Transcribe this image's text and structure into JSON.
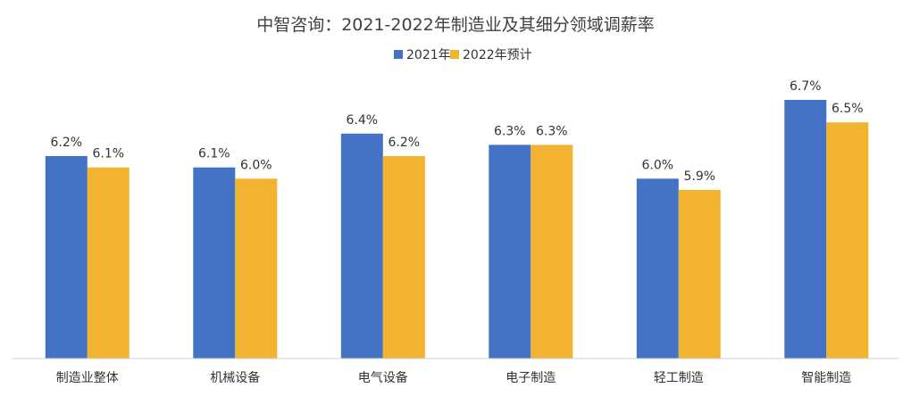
{
  "chart_data": {
    "type": "bar",
    "title": "中智咨询：2021-2022年制造业及其细分领域调薪率",
    "categories": [
      "制造业整体",
      "机械设备",
      "电气设备",
      "电子制造",
      "轻工制造",
      "智能制造"
    ],
    "series": [
      {
        "name": "2021年",
        "color": "#4472C4",
        "values": [
          6.2,
          6.1,
          6.4,
          6.3,
          6.0,
          6.7
        ],
        "labels": [
          "6.2%",
          "6.1%",
          "6.4%",
          "6.3%",
          "6.0%",
          "6.7%"
        ]
      },
      {
        "name": "2022年预计",
        "color": "#F2B430",
        "values": [
          6.1,
          6.0,
          6.2,
          6.3,
          5.9,
          6.5
        ],
        "labels": [
          "6.1%",
          "6.0%",
          "6.2%",
          "6.3%",
          "5.9%",
          "6.5%"
        ]
      }
    ],
    "legend_position": "top",
    "grid": false,
    "ylim": [
      4.4,
      6.7
    ]
  }
}
